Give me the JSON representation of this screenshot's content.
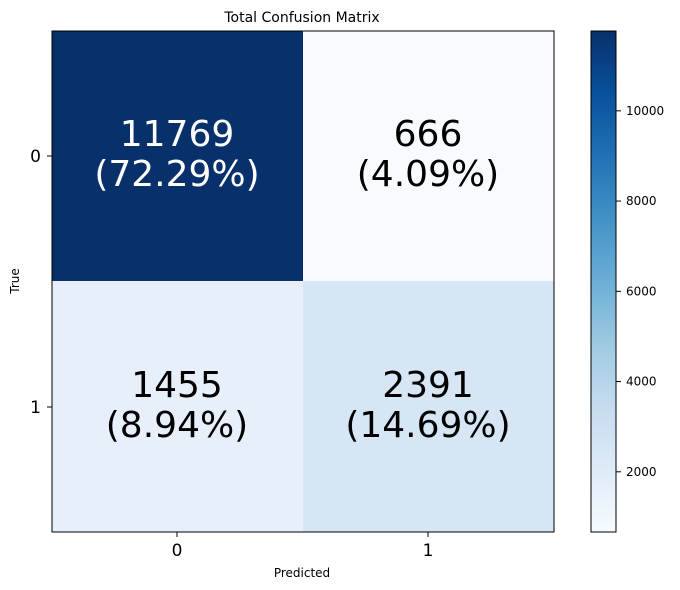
{
  "chart_data": {
    "type": "heatmap",
    "title": "Total Confusion Matrix",
    "xlabel": "Predicted",
    "ylabel": "True",
    "x_categories": [
      "0",
      "1"
    ],
    "y_categories": [
      "0",
      "1"
    ],
    "values": [
      [
        11769,
        666
      ],
      [
        1455,
        2391
      ]
    ],
    "cell_labels": [
      [
        "11769",
        "(72.29%)",
        "666",
        "(4.09%)"
      ],
      [
        "1455",
        "(8.94%)",
        "2391",
        "(14.69%)"
      ]
    ],
    "colormap": "Blues",
    "colorbar": {
      "range": [
        666,
        11769
      ],
      "ticks": [
        2000,
        4000,
        6000,
        8000,
        10000
      ],
      "tick_labels": [
        "2000",
        "4000",
        "6000",
        "8000",
        "10000"
      ]
    },
    "colors": {
      "cell_0_0": "#08306b",
      "cell_0_1": "#f7fbff",
      "cell_1_0": "#e7f0fa",
      "cell_1_1": "#d6e6f4",
      "text_dark_cell": "#ffffff",
      "text_light_cell": "#000000"
    }
  }
}
